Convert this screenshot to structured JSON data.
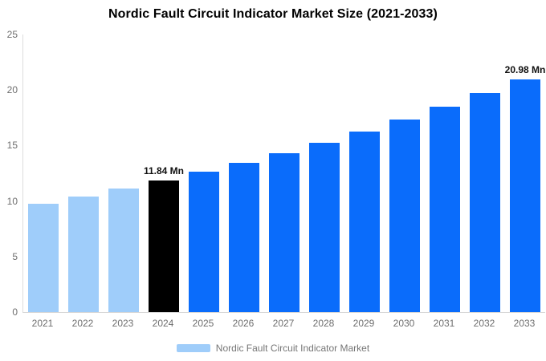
{
  "page": {
    "title": "Nordic Fault Circuit Indicator Market Size (2021-2033)"
  },
  "legend": {
    "label": "Nordic Fault Circuit Indicator Market",
    "swatch_color": "#9fcdfa"
  },
  "colors": {
    "historical_bar": "#9fcdfa",
    "current_year_bar": "#000000",
    "forecast_bar": "#0a6cfb",
    "axis_line": "#d6d6d6",
    "axis_text": "#6e6e6e",
    "annotation_text": "#111111"
  },
  "chart_data": {
    "type": "bar",
    "title": "Nordic Fault Circuit Indicator Market Size (2021-2033)",
    "xlabel": "",
    "ylabel": "",
    "unit": "Mn",
    "categories": [
      "2021",
      "2022",
      "2023",
      "2024",
      "2025",
      "2026",
      "2027",
      "2028",
      "2029",
      "2030",
      "2031",
      "2032",
      "2033"
    ],
    "values": [
      9.78,
      10.42,
      11.11,
      11.84,
      12.62,
      13.45,
      14.33,
      15.27,
      16.28,
      17.35,
      18.49,
      19.7,
      20.98
    ],
    "bar_colors": [
      "#9fcdfa",
      "#9fcdfa",
      "#9fcdfa",
      "#000000",
      "#0a6cfb",
      "#0a6cfb",
      "#0a6cfb",
      "#0a6cfb",
      "#0a6cfb",
      "#0a6cfb",
      "#0a6cfb",
      "#0a6cfb",
      "#0a6cfb"
    ],
    "annotations": [
      null,
      null,
      null,
      "11.84 Mn",
      null,
      null,
      null,
      null,
      null,
      null,
      null,
      null,
      "20.98 Mn"
    ],
    "ylim": [
      0,
      25
    ],
    "yticks": [
      0,
      5,
      10,
      15,
      20,
      25
    ],
    "grid": false,
    "legend_position": "bottom",
    "legend_entries": [
      "Nordic Fault Circuit Indicator Market"
    ]
  }
}
